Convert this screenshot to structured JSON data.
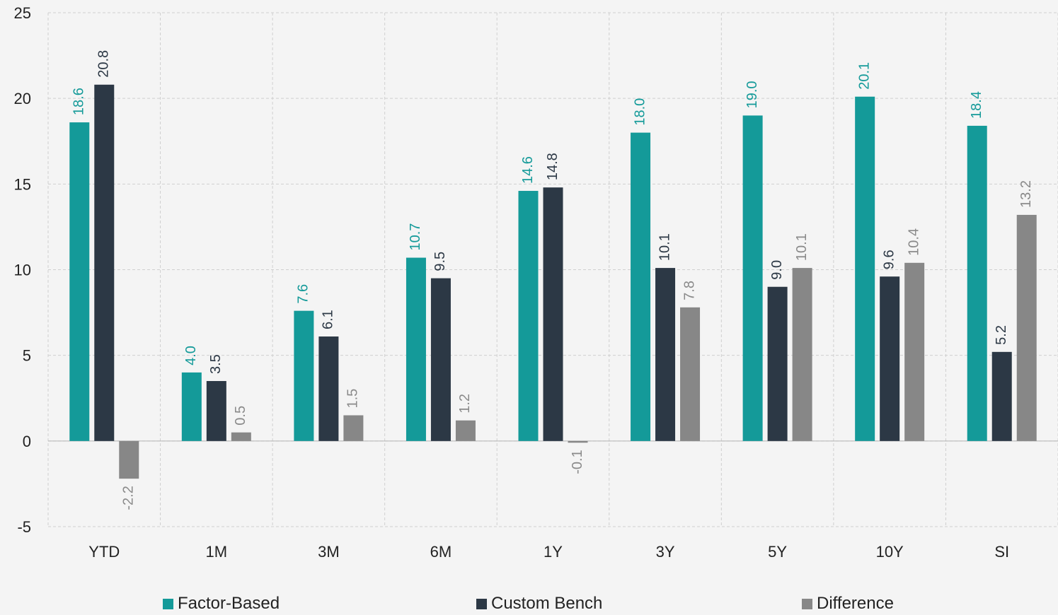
{
  "chart_data": {
    "type": "bar",
    "title": "",
    "xlabel": "",
    "ylabel": "",
    "ylim": [
      -5,
      25
    ],
    "yticks": [
      -5,
      0,
      5,
      10,
      15,
      20,
      25
    ],
    "grid": true,
    "legend_position": "bottom",
    "categories": [
      "YTD",
      "1M",
      "3M",
      "6M",
      "1Y",
      "3Y",
      "5Y",
      "10Y",
      "SI"
    ],
    "series": [
      {
        "name": "Factor-Based",
        "color": "#149a99",
        "values": [
          18.6,
          4.0,
          7.6,
          10.7,
          14.6,
          18.0,
          19.0,
          20.1,
          18.4
        ]
      },
      {
        "name": "Custom Bench",
        "color": "#2c3845",
        "values": [
          20.8,
          3.5,
          6.1,
          9.5,
          14.8,
          10.1,
          9.0,
          9.6,
          5.2
        ]
      },
      {
        "name": "Difference",
        "color": "#878787",
        "values": [
          -2.2,
          0.5,
          1.5,
          1.2,
          -0.1,
          7.8,
          10.1,
          10.4,
          13.2
        ]
      }
    ]
  }
}
